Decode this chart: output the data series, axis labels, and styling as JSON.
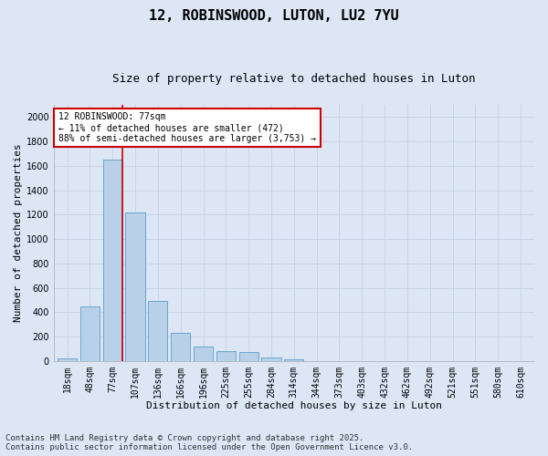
{
  "title1": "12, ROBINSWOOD, LUTON, LU2 7YU",
  "title2": "Size of property relative to detached houses in Luton",
  "xlabel": "Distribution of detached houses by size in Luton",
  "ylabel": "Number of detached properties",
  "categories": [
    "18sqm",
    "48sqm",
    "77sqm",
    "107sqm",
    "136sqm",
    "166sqm",
    "196sqm",
    "225sqm",
    "255sqm",
    "284sqm",
    "314sqm",
    "344sqm",
    "373sqm",
    "403sqm",
    "432sqm",
    "462sqm",
    "492sqm",
    "521sqm",
    "551sqm",
    "580sqm",
    "610sqm"
  ],
  "values": [
    20,
    450,
    1650,
    1220,
    490,
    230,
    120,
    80,
    70,
    25,
    10,
    0,
    0,
    0,
    0,
    0,
    0,
    0,
    0,
    0,
    0
  ],
  "bar_color": "#b8d0e8",
  "bar_edge_color": "#5a9ec9",
  "red_line_index": 2,
  "annotation_title": "12 ROBINSWOOD: 77sqm",
  "annotation_line1": "← 11% of detached houses are smaller (472)",
  "annotation_line2": "88% of semi-detached houses are larger (3,753) →",
  "annotation_box_color": "#ffffff",
  "annotation_box_edge_color": "#cc0000",
  "red_line_color": "#cc0000",
  "ylim": [
    0,
    2100
  ],
  "yticks": [
    0,
    200,
    400,
    600,
    800,
    1000,
    1200,
    1400,
    1600,
    1800,
    2000
  ],
  "grid_color": "#c8d4e8",
  "background_color": "#dce6f5",
  "fig_background_color": "#dce6f5",
  "footer1": "Contains HM Land Registry data © Crown copyright and database right 2025.",
  "footer2": "Contains public sector information licensed under the Open Government Licence v3.0.",
  "title_fontsize": 11,
  "subtitle_fontsize": 9,
  "footer_fontsize": 6.5,
  "axis_fontsize": 8,
  "tick_fontsize": 7
}
